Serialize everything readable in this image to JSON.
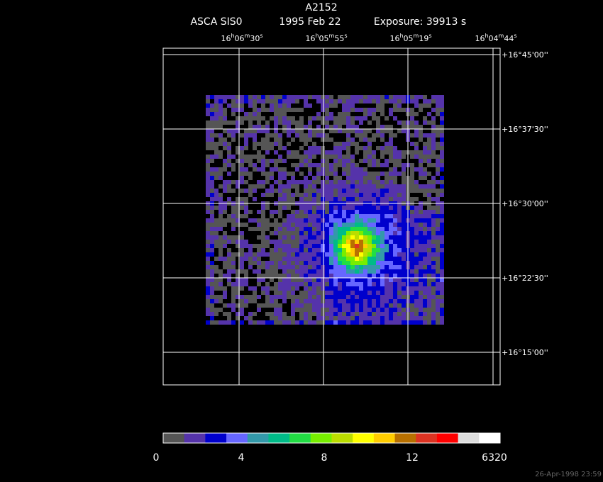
{
  "header": {
    "title": "A2152",
    "instrument": "ASCA SIS0",
    "date": "1995 Feb 22",
    "exposure": "Exposure: 39913 s"
  },
  "ra_labels": [
    [
      "16",
      "h",
      "06",
      "m",
      "30",
      "s"
    ],
    [
      "16",
      "h",
      "05",
      "m",
      "55",
      "s"
    ],
    [
      "16",
      "h",
      "05",
      "m",
      "19",
      "s"
    ],
    [
      "16",
      "h",
      "04",
      "m",
      "44",
      "s"
    ]
  ],
  "dec_labels": [
    "+16°45'00''",
    "+16°37'30''",
    "+16°30'00''",
    "+16°22'30''",
    "+16°15'00''"
  ],
  "colorbar_labels": [
    "0",
    "4",
    "8",
    "12",
    "6320"
  ],
  "timestamp": "26-Apr-1998 23:59"
}
